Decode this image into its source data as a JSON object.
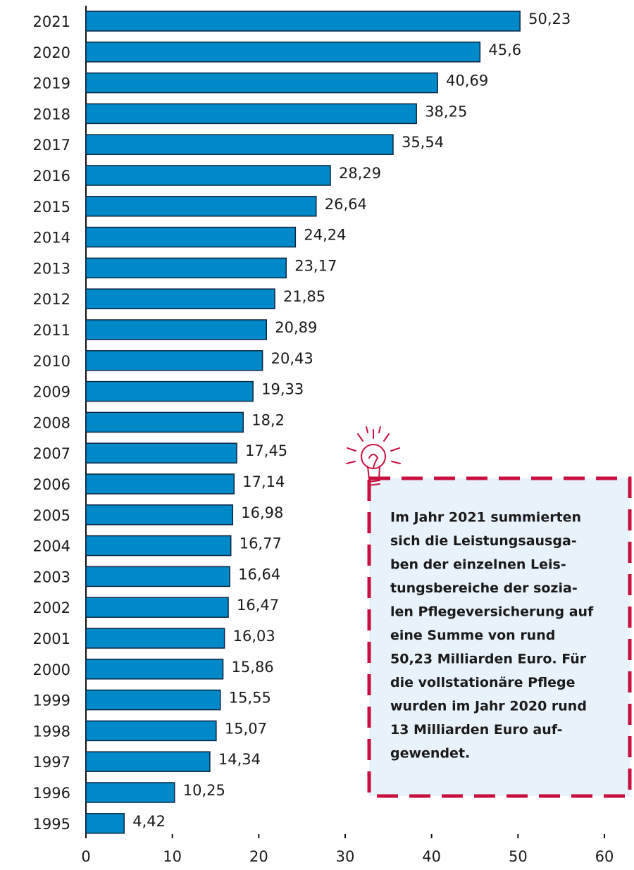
{
  "chart_data": {
    "type": "barh",
    "categories": [
      "2021",
      "2020",
      "2019",
      "2018",
      "2017",
      "2016",
      "2015",
      "2014",
      "2013",
      "2012",
      "2011",
      "2010",
      "2009",
      "2008",
      "2007",
      "2006",
      "2005",
      "2004",
      "2003",
      "2002",
      "2001",
      "2000",
      "1999",
      "1998",
      "1997",
      "1996",
      "1995"
    ],
    "values": [
      50.23,
      45.6,
      40.69,
      38.25,
      35.54,
      28.29,
      26.64,
      24.24,
      23.17,
      21.85,
      20.89,
      20.43,
      19.33,
      18.2,
      17.45,
      17.14,
      16.98,
      16.77,
      16.64,
      16.47,
      16.03,
      15.86,
      15.55,
      15.07,
      14.34,
      10.25,
      4.42
    ],
    "value_labels": [
      "50,23",
      "45,6",
      "40,69",
      "38,25",
      "35,54",
      "28,29",
      "26,64",
      "24,24",
      "23,17",
      "21,85",
      "20,89",
      "20,43",
      "19,33",
      "18,2",
      "17,45",
      "17,14",
      "16,98",
      "16,77",
      "16,64",
      "16,47",
      "16,03",
      "15,86",
      "15,55",
      "15,07",
      "14,34",
      "10,25",
      "4,42"
    ],
    "color": "#0089c8",
    "xlim": [
      0,
      60
    ],
    "xticks": [
      0,
      10,
      20,
      30,
      40,
      50,
      60
    ],
    "annotation": [
      "Im Jahr 2021 summierten",
      "sich die Leistungsausga-",
      "ben der einzelnen Leis-",
      "tungsbereiche der sozia-",
      "len Pflegeversicherung auf",
      "eine Summe von rund",
      "50,23 Milliarden Euro. Für",
      "die vollstationäre Pflege",
      "wurden im Jahr 2020 rund",
      "13 Milliarden Euro auf-",
      "gewendet."
    ]
  }
}
